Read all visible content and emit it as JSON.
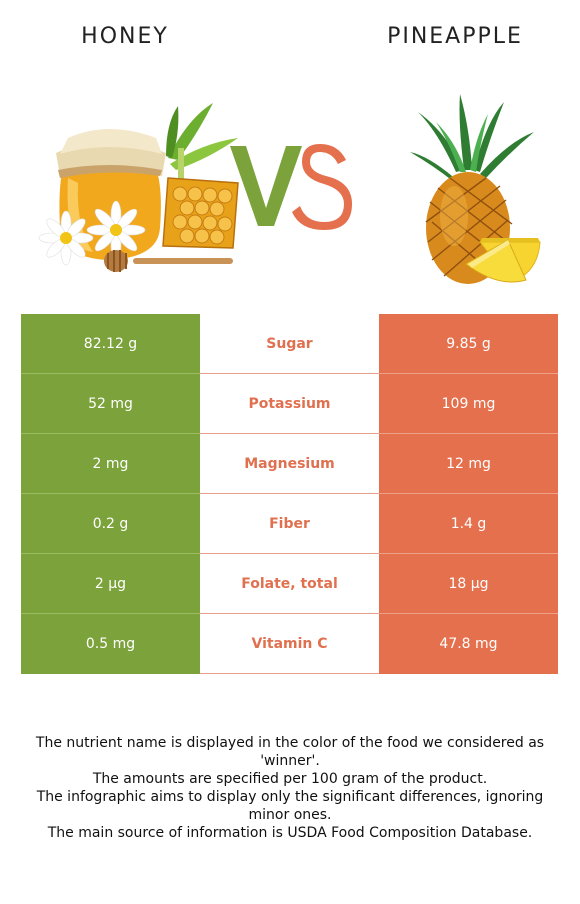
{
  "header": {
    "left_food": "HONEY",
    "right_food": "PINEAPPLE",
    "vs": "VS"
  },
  "colors": {
    "honey": "#7ba23b",
    "pineapple": "#e5704d",
    "winner_text": "#e0704f"
  },
  "icons": {
    "left": "honey-jar-icon",
    "right": "pineapple-icon"
  },
  "rows": [
    {
      "left": "82.12 g",
      "nutrient": "Sugar",
      "right": "9.85 g"
    },
    {
      "left": "52 mg",
      "nutrient": "Potassium",
      "right": "109 mg"
    },
    {
      "left": "2 mg",
      "nutrient": "Magnesium",
      "right": "12 mg"
    },
    {
      "left": "0.2 g",
      "nutrient": "Fiber",
      "right": "1.4 g"
    },
    {
      "left": "2 µg",
      "nutrient": "Folate, total",
      "right": "18 µg"
    },
    {
      "left": "0.5 mg",
      "nutrient": "Vitamin C",
      "right": "47.8 mg"
    }
  ],
  "notes": [
    "The nutrient name is displayed in the color of the food we considered as 'winner'.",
    "The amounts are specified per 100 gram of the product.",
    "The infographic aims to display only the significant differences, ignoring minor ones.",
    "The main source of information is USDA Food Composition Database."
  ]
}
